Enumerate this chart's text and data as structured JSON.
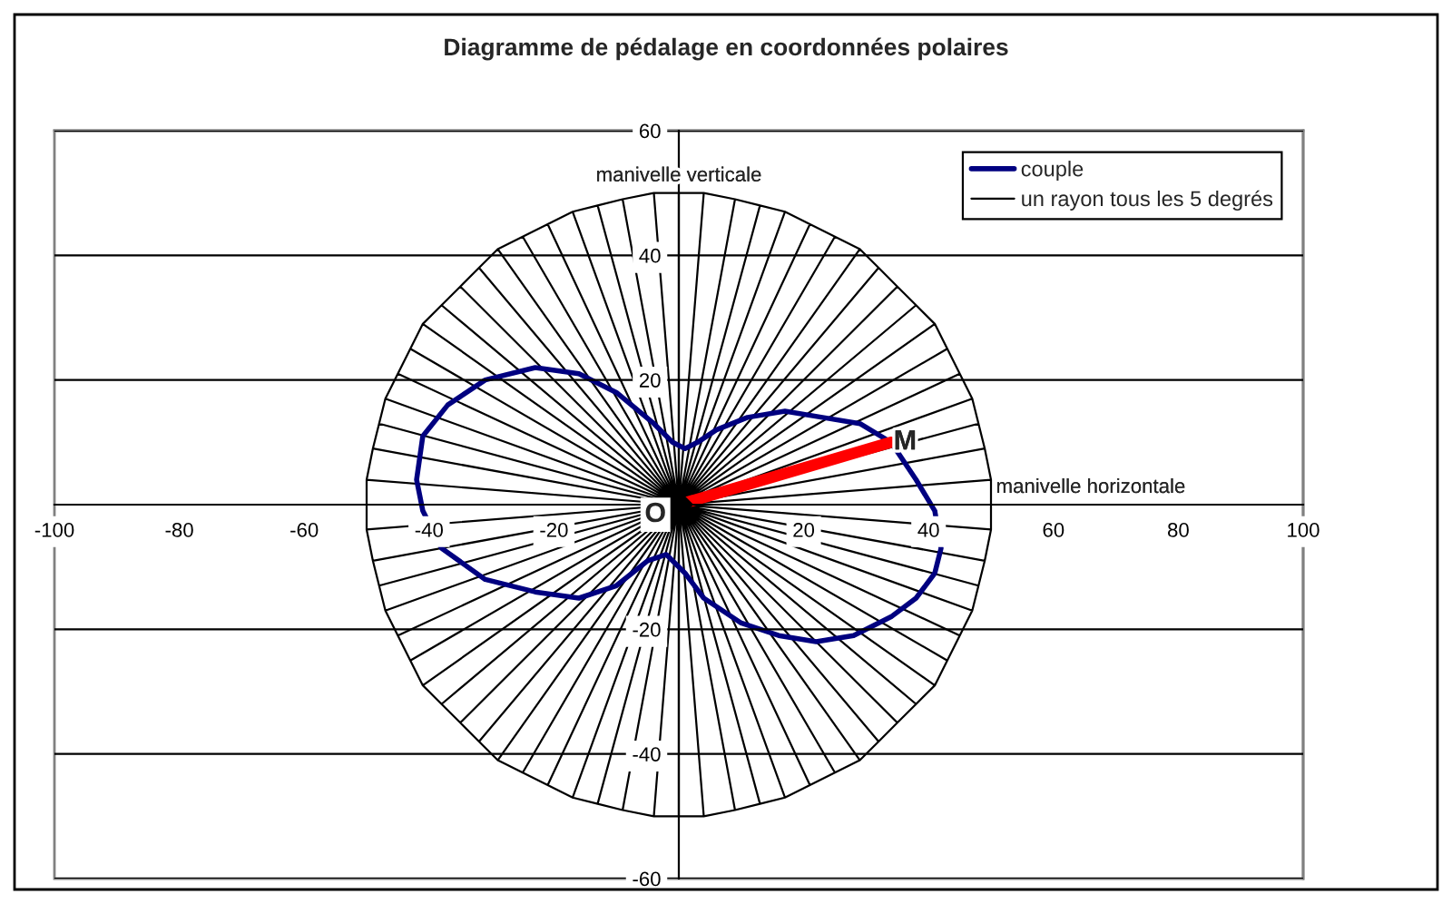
{
  "chart_data": {
    "type": "line",
    "title": "Diagramme de pédalage en coordonnées polaires",
    "series": [
      {
        "name": "couple",
        "color": "#000080",
        "x": [
          41,
          38,
          34,
          29,
          23,
          17,
          11,
          6,
          3,
          1,
          -1,
          -4,
          -10,
          -16,
          -23,
          -31,
          -37,
          -41,
          -42,
          -41,
          -38,
          -31,
          -23,
          -16,
          -10,
          -5,
          -2,
          1,
          4,
          10,
          16,
          22,
          28,
          34,
          38,
          41,
          42,
          41,
          38
        ],
        "values": [
          -1,
          4,
          10,
          13,
          14,
          15,
          14,
          12,
          10,
          9,
          10,
          13,
          18,
          21,
          22,
          20,
          16,
          11,
          4,
          -1,
          -7,
          -12,
          -14,
          -15,
          -13,
          -9,
          -8,
          -11,
          -15,
          -19,
          -21,
          -22,
          -21,
          -18,
          -15,
          -11,
          -7,
          -1,
          4
        ]
      },
      {
        "name": "un rayon tous les 5 degrés",
        "color": "#000000",
        "x": [
          50,
          50,
          49,
          48,
          47,
          45,
          43,
          41,
          38,
          35,
          32,
          29,
          25,
          21,
          17,
          13,
          9,
          4,
          0,
          -4,
          -9,
          -13,
          -17,
          -21,
          -25,
          -29,
          -32,
          -35,
          -38,
          -41,
          -43,
          -45,
          -47,
          -48,
          -49,
          -50,
          -50,
          -50,
          -49,
          -48,
          -47,
          -45,
          -43,
          -41,
          -38,
          -35,
          -32,
          -29,
          -25,
          -21,
          -17,
          -13,
          -9,
          -4,
          0,
          4,
          9,
          13,
          17,
          21,
          25,
          29,
          32,
          35,
          38,
          41,
          43,
          45,
          47,
          48,
          49,
          50,
          50,
          0,
          50,
          49,
          0,
          48,
          47,
          0,
          45,
          43,
          0,
          41,
          38,
          0,
          35,
          32,
          0,
          29,
          25,
          0,
          21,
          17,
          0,
          13,
          9,
          0,
          4,
          0,
          0,
          -4,
          -9,
          0,
          -13,
          -17,
          0,
          -21,
          -25,
          0,
          -29,
          -32,
          0,
          -35,
          -38,
          0,
          -41,
          -43,
          0,
          -45,
          -47,
          0,
          -48,
          -49,
          0,
          -50,
          -50,
          0,
          -50,
          -49,
          0,
          -48,
          -47,
          0,
          -45,
          -43,
          0,
          -41,
          -38,
          0,
          -35,
          -32,
          0,
          -29,
          -25,
          0,
          -21,
          -17,
          0,
          -13,
          -9,
          0,
          -4,
          0,
          0,
          4,
          9,
          0,
          13,
          17,
          0,
          21,
          25,
          0,
          29,
          32,
          0,
          35,
          38,
          0,
          41,
          43,
          0,
          45,
          47,
          0,
          48,
          49,
          0,
          50
        ],
        "values": [
          0,
          4,
          9,
          13,
          17,
          21,
          25,
          29,
          32,
          35,
          38,
          41,
          43,
          45,
          47,
          48,
          49,
          50,
          50,
          50,
          49,
          48,
          47,
          45,
          43,
          41,
          38,
          35,
          32,
          29,
          25,
          21,
          17,
          13,
          9,
          4,
          0,
          -4,
          -9,
          -13,
          -17,
          -21,
          -25,
          -29,
          -32,
          -35,
          -38,
          -41,
          -43,
          -45,
          -47,
          -48,
          -49,
          -50,
          -50,
          -50,
          -49,
          -48,
          -47,
          -45,
          -43,
          -41,
          -38,
          -35,
          -32,
          -29,
          -25,
          -21,
          -17,
          -13,
          -9,
          -4,
          0,
          0,
          4,
          9,
          0,
          13,
          17,
          0,
          21,
          25,
          0,
          29,
          32,
          0,
          35,
          38,
          0,
          41,
          43,
          0,
          45,
          47,
          0,
          48,
          49,
          0,
          50,
          50,
          0,
          50,
          49,
          0,
          48,
          47,
          0,
          45,
          43,
          0,
          41,
          38,
          0,
          35,
          32,
          0,
          29,
          25,
          0,
          21,
          17,
          0,
          13,
          9,
          0,
          4,
          0,
          0,
          -4,
          -9,
          0,
          -13,
          -17,
          0,
          -21,
          -25,
          0,
          -29,
          -32,
          0,
          -35,
          -38,
          0,
          -41,
          -43,
          0,
          -45,
          -47,
          0,
          -48,
          -49,
          0,
          -50,
          -50,
          0,
          -50,
          -49,
          0,
          -48,
          -47,
          0,
          -45,
          -43,
          0,
          -41,
          -38,
          0,
          -35,
          -32,
          0,
          -29,
          -25,
          0,
          -21,
          -17,
          0,
          -13,
          -9,
          0,
          -4
        ]
      },
      {
        "color": "#ff0000",
        "x": [
          0,
          34
        ],
        "values": [
          0,
          10
        ]
      },
      {
        "type": "scatter",
        "color": "#000000",
        "marker": "diamond",
        "x": [
          0
        ],
        "values": [
          0
        ]
      }
    ],
    "annotations": [
      {
        "text": "manivelle verticale",
        "x": 0,
        "y": 50
      },
      {
        "text": "manivelle horizontale",
        "x": 50,
        "y": 0
      },
      {
        "text": "O",
        "x": 0,
        "y": 0
      },
      {
        "text": "M",
        "x": 34,
        "y": 10
      }
    ],
    "xlim": [
      -100,
      100
    ],
    "xticks": [
      -100,
      -80,
      -60,
      -40,
      -20,
      20,
      40,
      60,
      80,
      100
    ],
    "ylim": [
      -60,
      60
    ],
    "yticks": [
      -60,
      -40,
      -20,
      {
        "value": 0,
        "label": null
      },
      20,
      40,
      60
    ],
    "grid": "y",
    "legend": "top right"
  }
}
